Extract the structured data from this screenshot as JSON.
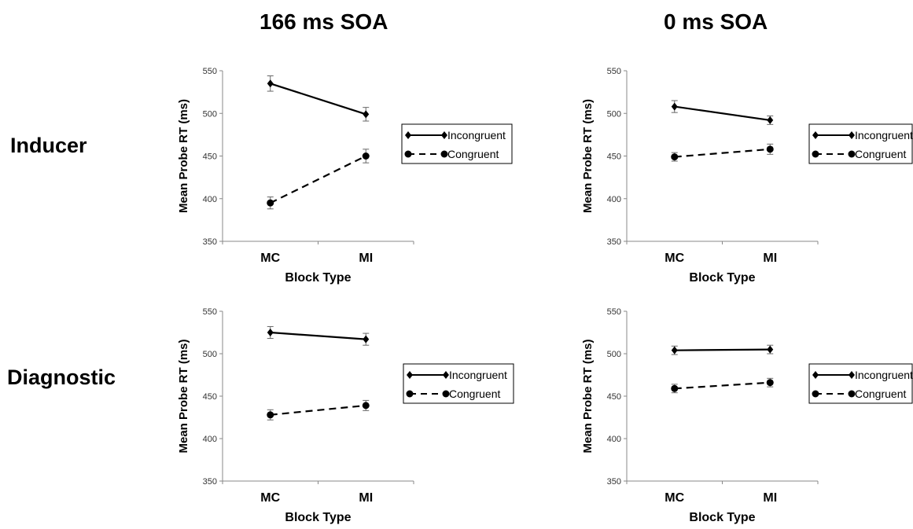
{
  "columns": [
    {
      "title": "166 ms SOA"
    },
    {
      "title": "0 ms SOA"
    }
  ],
  "rows": [
    {
      "label": "Inducer"
    },
    {
      "label": "Diagnostic"
    }
  ],
  "chart_data": [
    {
      "type": "line",
      "column": "166 ms SOA",
      "row": "Inducer",
      "categories": [
        "MC",
        "MI"
      ],
      "xlabel": "Block Type",
      "ylabel": "Mean Probe RT (ms)",
      "ylim": [
        350,
        550
      ],
      "yticks": [
        350,
        400,
        450,
        500,
        550
      ],
      "legend": "right",
      "series": [
        {
          "name": "Incongruent",
          "values": [
            535,
            499
          ],
          "errors": [
            9,
            8
          ],
          "style": "solid",
          "marker": "diamond"
        },
        {
          "name": "Congruent",
          "values": [
            395,
            450
          ],
          "errors": [
            7,
            8
          ],
          "style": "dashed",
          "marker": "circle"
        }
      ]
    },
    {
      "type": "line",
      "column": "0 ms SOA",
      "row": "Inducer",
      "categories": [
        "MC",
        "MI"
      ],
      "xlabel": "Block Type",
      "ylabel": "Mean Probe RT (ms)",
      "ylim": [
        350,
        550
      ],
      "yticks": [
        350,
        400,
        450,
        500,
        550
      ],
      "legend": "right",
      "series": [
        {
          "name": "Incongruent",
          "values": [
            508,
            492
          ],
          "errors": [
            7,
            5
          ],
          "style": "solid",
          "marker": "diamond"
        },
        {
          "name": "Congruent",
          "values": [
            449,
            458
          ],
          "errors": [
            5,
            6
          ],
          "style": "dashed",
          "marker": "circle"
        }
      ]
    },
    {
      "type": "line",
      "column": "166 ms SOA",
      "row": "Diagnostic",
      "categories": [
        "MC",
        "MI"
      ],
      "xlabel": "Block Type",
      "ylabel": "Mean Probe RT (ms)",
      "ylim": [
        350,
        550
      ],
      "yticks": [
        350,
        400,
        450,
        500,
        550
      ],
      "legend": "right",
      "series": [
        {
          "name": "Incongruent",
          "values": [
            525,
            517
          ],
          "errors": [
            7,
            7
          ],
          "style": "solid",
          "marker": "diamond"
        },
        {
          "name": "Congruent",
          "values": [
            428,
            439
          ],
          "errors": [
            6,
            6
          ],
          "style": "dashed",
          "marker": "circle"
        }
      ]
    },
    {
      "type": "line",
      "column": "0 ms SOA",
      "row": "Diagnostic",
      "categories": [
        "MC",
        "MI"
      ],
      "xlabel": "Block Type",
      "ylabel": "Mean Probe RT (ms)",
      "ylim": [
        350,
        550
      ],
      "yticks": [
        350,
        400,
        450,
        500,
        550
      ],
      "legend": "right",
      "series": [
        {
          "name": "Incongruent",
          "values": [
            504,
            505
          ],
          "errors": [
            5,
            5
          ],
          "style": "solid",
          "marker": "diamond"
        },
        {
          "name": "Congruent",
          "values": [
            459,
            466
          ],
          "errors": [
            5,
            5
          ],
          "style": "dashed",
          "marker": "circle"
        }
      ]
    }
  ]
}
